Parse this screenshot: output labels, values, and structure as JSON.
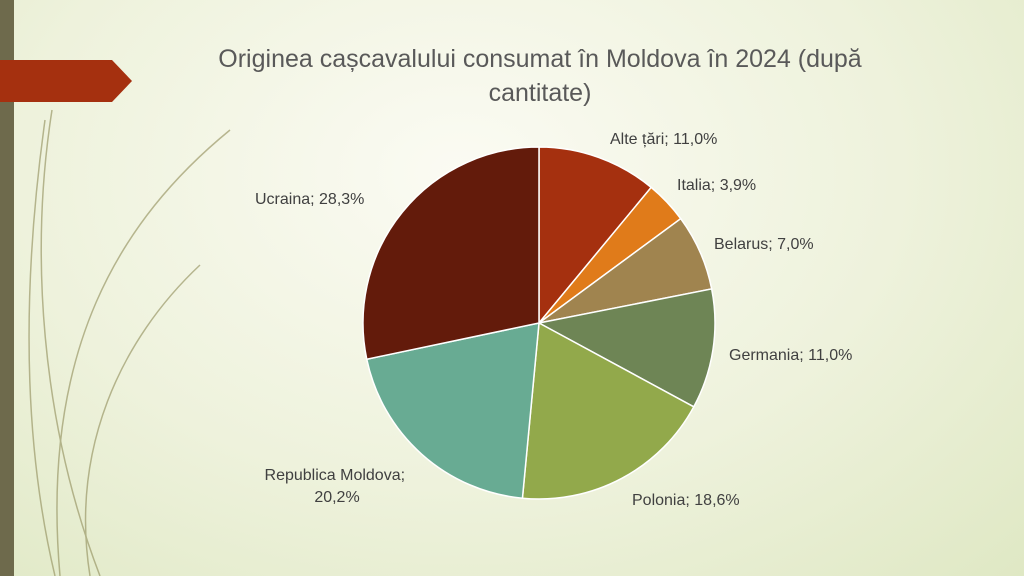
{
  "chart_data": {
    "type": "pie",
    "title": "Originea cașcavalului consumat în Moldova în 2024 (după cantitate)",
    "categories": [
      "Alte țări",
      "Italia",
      "Belarus",
      "Germania",
      "Polonia",
      "Republica Moldova",
      "Ucraina"
    ],
    "values": [
      11.0,
      3.9,
      7.0,
      11.0,
      18.6,
      20.2,
      28.3
    ],
    "value_labels": [
      "11,0%",
      "3,9%",
      "7,0%",
      "11,0%",
      "18,6%",
      "20,2%",
      "28,3%"
    ],
    "label_separator": "; ",
    "colors": [
      "#a5300f",
      "#e07b1a",
      "#a0844f",
      "#6e8555",
      "#92a94b",
      "#68ab93",
      "#631b0b"
    ]
  }
}
